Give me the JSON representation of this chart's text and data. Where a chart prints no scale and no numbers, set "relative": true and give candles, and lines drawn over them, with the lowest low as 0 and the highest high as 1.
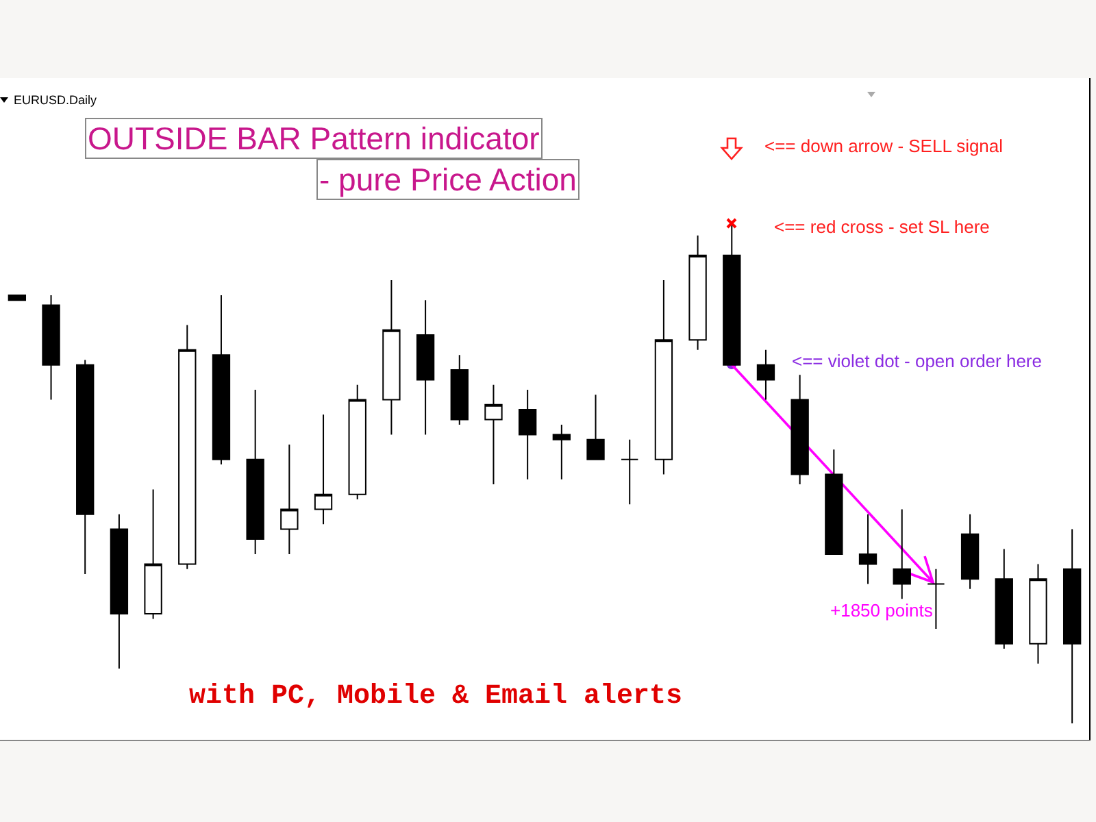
{
  "chart_data": {
    "type": "candlestick",
    "title": "OUTSIDE BAR Pattern indicator\n- pure Price Action",
    "subtitle": "EURUSD.Daily",
    "relative": true,
    "categories": [
      null,
      null,
      null,
      null,
      null,
      null,
      null,
      null,
      null,
      null,
      null,
      null,
      null,
      null,
      null,
      null,
      null,
      null,
      null,
      null,
      null,
      null,
      null,
      null,
      null,
      null,
      null,
      null,
      null,
      null,
      null,
      null
    ],
    "ohlc": [
      [
        0.86,
        0.86,
        0.85,
        0.85
      ],
      [
        0.84,
        0.86,
        0.65,
        0.72
      ],
      [
        0.72,
        0.73,
        0.3,
        0.42
      ],
      [
        0.39,
        0.42,
        0.11,
        0.22
      ],
      [
        0.22,
        0.47,
        0.21,
        0.32
      ],
      [
        0.32,
        0.8,
        0.31,
        0.75
      ],
      [
        0.74,
        0.86,
        0.52,
        0.53
      ],
      [
        0.53,
        0.67,
        0.34,
        0.37
      ],
      [
        0.39,
        0.56,
        0.34,
        0.43
      ],
      [
        0.43,
        0.62,
        0.4,
        0.46
      ],
      [
        0.46,
        0.68,
        0.45,
        0.65
      ],
      [
        0.65,
        0.89,
        0.58,
        0.79
      ],
      [
        0.78,
        0.85,
        0.58,
        0.69
      ],
      [
        0.71,
        0.74,
        0.6,
        0.61
      ],
      [
        0.61,
        0.68,
        0.48,
        0.64
      ],
      [
        0.63,
        0.67,
        0.49,
        0.58
      ],
      [
        0.58,
        0.6,
        0.49,
        0.57
      ],
      [
        0.57,
        0.66,
        0.53,
        0.53
      ],
      [
        0.53,
        0.57,
        0.44,
        0.53
      ],
      [
        0.53,
        0.89,
        0.5,
        0.77
      ],
      [
        0.77,
        0.98,
        0.75,
        0.94
      ],
      [
        0.94,
        1,
        0.72,
        0.72
      ],
      [
        0.72,
        0.75,
        0.65,
        0.69
      ],
      [
        0.65,
        0.7,
        0.48,
        0.5
      ],
      [
        0.5,
        0.55,
        0.34,
        0.34
      ],
      [
        0.34,
        0.42,
        0.28,
        0.32
      ],
      [
        0.31,
        0.43,
        0.25,
        0.28
      ],
      [
        0.28,
        0.31,
        0.19,
        0.28
      ],
      [
        0.38,
        0.42,
        0.27,
        0.29
      ],
      [
        0.29,
        0.35,
        0.15,
        0.16
      ],
      [
        0.16,
        0.32,
        0.12,
        0.29
      ],
      [
        0.31,
        0.39,
        0,
        0.16
      ]
    ],
    "annotations": [
      "with PC, Mobile & Email alerts",
      "<== down arrow - SELL signal",
      "<== red cross - set SL here",
      "<== violet dot - open order here",
      "+1850 points"
    ]
  }
}
